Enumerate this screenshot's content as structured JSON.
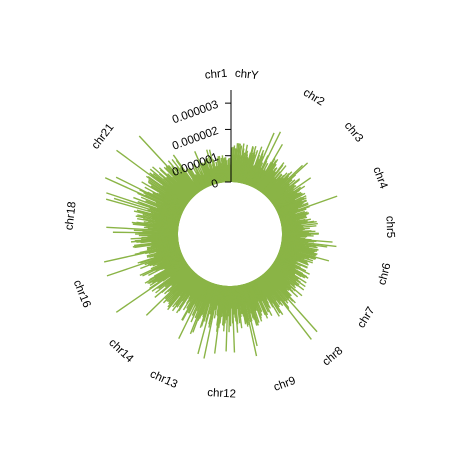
{
  "chart_data": {
    "type": "circular-bar",
    "title": "",
    "xlabel": "",
    "ylabel": "",
    "ylim": [
      0,
      3.5e-06
    ],
    "y_ticks": [
      {
        "value": 0,
        "label": "0"
      },
      {
        "value": 1e-06,
        "label": "0.000001"
      },
      {
        "value": 2e-06,
        "label": "0.000002"
      },
      {
        "value": 3e-06,
        "label": "0.000003"
      }
    ],
    "bar_color": "#8ab446",
    "grid": false,
    "legend": "none",
    "segments": [
      {
        "name": "chr1",
        "label": "chr1",
        "start_deg": 0,
        "end_deg": 22,
        "mean": 1.2e-06,
        "peak": 2.6e-06
      },
      {
        "name": "chr2",
        "label": "chr2",
        "start_deg": 22,
        "end_deg": 41,
        "mean": 1.1e-06,
        "peak": 2.4e-06
      },
      {
        "name": "chr3",
        "label": "chr3",
        "start_deg": 41,
        "end_deg": 60,
        "mean": 1.1e-06,
        "peak": 2.2e-06
      },
      {
        "name": "chr4",
        "label": "chr4",
        "start_deg": 60,
        "end_deg": 79,
        "mean": 1e-06,
        "peak": 2.5e-06
      },
      {
        "name": "chr5",
        "label": "chr5",
        "start_deg": 79,
        "end_deg": 96,
        "mean": 1.1e-06,
        "peak": 2e-06
      },
      {
        "name": "chr6",
        "label": "chr6",
        "start_deg": 96,
        "end_deg": 113,
        "mean": 1.2e-06,
        "peak": 2.1e-06
      },
      {
        "name": "chr7",
        "label": "chr7",
        "start_deg": 113,
        "end_deg": 130,
        "mean": 1.2e-06,
        "peak": 2.3e-06
      },
      {
        "name": "chr8",
        "label": "chr8",
        "start_deg": 130,
        "end_deg": 150,
        "mean": 1.3e-06,
        "peak": 3.1e-06
      },
      {
        "name": "chr9",
        "label": "chr9",
        "start_deg": 150,
        "end_deg": 170,
        "mean": 1.3e-06,
        "peak": 2.8e-06
      },
      {
        "name": "chr12",
        "label": "chr12",
        "start_deg": 170,
        "end_deg": 196,
        "mean": 1.4e-06,
        "peak": 3e-06
      },
      {
        "name": "chr13",
        "label": "chr13",
        "start_deg": 196,
        "end_deg": 213,
        "mean": 1.4e-06,
        "peak": 2.5e-06
      },
      {
        "name": "chr14",
        "label": "chr14",
        "start_deg": 213,
        "end_deg": 233,
        "mean": 1.4e-06,
        "peak": 2.6e-06
      },
      {
        "name": "chr16",
        "label": "chr16",
        "start_deg": 233,
        "end_deg": 263,
        "mean": 1.4e-06,
        "peak": 3.3e-06
      },
      {
        "name": "chr18",
        "label": "chr18",
        "start_deg": 263,
        "end_deg": 290,
        "mean": 1.4e-06,
        "peak": 3e-06
      },
      {
        "name": "chr21",
        "label": "chr21",
        "start_deg": 290,
        "end_deg": 325,
        "mean": 1.5e-06,
        "peak": 3.4e-06
      },
      {
        "name": "chrY",
        "label": "chrY",
        "start_deg": 325,
        "end_deg": 360,
        "mean": 8e-07,
        "peak": 1.5e-06
      }
    ]
  }
}
